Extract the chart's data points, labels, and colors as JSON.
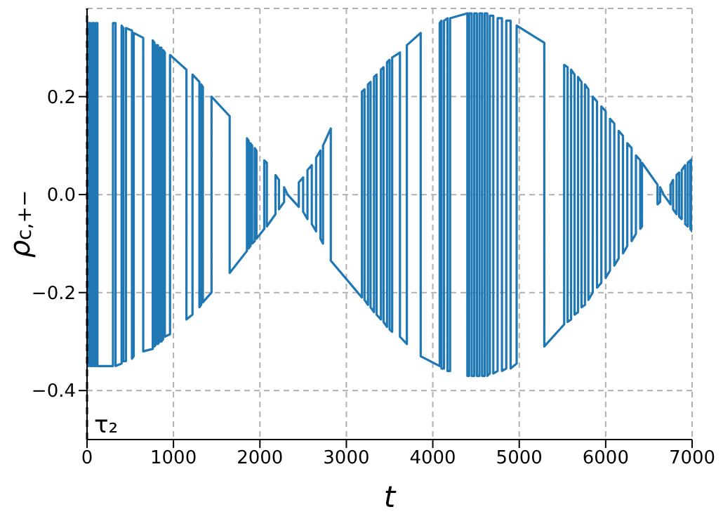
{
  "chart_data": {
    "type": "line",
    "xlabel": "t",
    "ylabel": "ρ$_{c,+−}$",
    "xlim": [
      0,
      7000
    ],
    "ylim": [
      -0.5,
      0.38
    ],
    "xticks": [
      0,
      1000,
      2000,
      3000,
      4000,
      5000,
      6000,
      7000
    ],
    "yticks": [
      {
        "value": -0.4,
        "label": "−0.4"
      },
      {
        "value": -0.2,
        "label": "−0.2"
      },
      {
        "value": 0,
        "label": "0.0"
      },
      {
        "value": 0.2,
        "label": "0.2"
      }
    ],
    "grid": true,
    "ref_lines": [
      {
        "axis": "x",
        "value": 0,
        "label": "τ₂",
        "color": "#000000",
        "line_style": "dashed"
      }
    ],
    "series": [
      {
        "color": "#1f77b4",
        "x": [
          0,
          0,
          20,
          20,
          40,
          40,
          60,
          60,
          80,
          80,
          100,
          100,
          120,
          120,
          300,
          300,
          330,
          330,
          400,
          400,
          420,
          420,
          450,
          450,
          520,
          520,
          540,
          540,
          650,
          650,
          760,
          760,
          780,
          780,
          800,
          800,
          820,
          820,
          840,
          840,
          860,
          860,
          880,
          880,
          900,
          900,
          960,
          960,
          1150,
          1150,
          1220,
          1220,
          1300,
          1300,
          1320,
          1320,
          1340,
          1340,
          1440,
          1440,
          1650,
          1650,
          1850,
          1850,
          1870,
          1870,
          1890,
          1890,
          1910,
          1910,
          1940,
          1940,
          1960,
          1960,
          2050,
          2050,
          2080,
          2080,
          2180,
          2180,
          2220,
          2220,
          2280,
          2280,
          2320,
          2450,
          2450,
          2500,
          2500,
          2550,
          2550,
          2600,
          2600,
          2650,
          2650,
          2700,
          2700,
          2730,
          2730,
          2820,
          2820,
          3180,
          3180,
          3210,
          3210,
          3250,
          3250,
          3280,
          3280,
          3320,
          3320,
          3350,
          3350,
          3400,
          3400,
          3430,
          3430,
          3470,
          3470,
          3500,
          3500,
          3530,
          3530,
          3620,
          3620,
          3700,
          3700,
          3860,
          3860,
          4080,
          4080,
          4100,
          4100,
          4130,
          4130,
          4170,
          4170,
          4200,
          4200,
          4400,
          4400,
          4420,
          4420,
          4450,
          4450,
          4480,
          4480,
          4510,
          4510,
          4540,
          4540,
          4570,
          4570,
          4600,
          4600,
          4630,
          4630,
          4660,
          4660,
          4700,
          4700,
          4750,
          4750,
          4800,
          4800,
          4850,
          4850,
          4900,
          4900,
          4970,
          4970,
          5290,
          5290,
          5520,
          5520,
          5560,
          5560,
          5600,
          5600,
          5640,
          5640,
          5680,
          5680,
          5720,
          5720,
          5760,
          5760,
          5800,
          5800,
          5850,
          5850,
          5900,
          5900,
          5950,
          5950,
          6000,
          6000,
          6050,
          6050,
          6100,
          6100,
          6150,
          6150,
          6200,
          6200,
          6250,
          6250,
          6300,
          6300,
          6350,
          6350,
          6400,
          6400,
          6420,
          6420,
          6600,
          6600,
          6630,
          6630,
          6670,
          6750,
          6750,
          6780,
          6780,
          6820,
          6820,
          6850,
          6850,
          6880,
          6880,
          6920,
          6920,
          6950,
          6950,
          6980,
          6980,
          7000,
          7000
        ],
        "values": [
          0.35,
          -0.35,
          -0.35,
          0.35,
          0.35,
          -0.35,
          -0.35,
          0.35,
          0.35,
          -0.35,
          -0.35,
          0.35,
          0.35,
          -0.35,
          -0.35,
          0.35,
          0.35,
          -0.35,
          -0.345,
          0.345,
          0.34,
          -0.34,
          -0.34,
          0.34,
          0.335,
          -0.335,
          -0.33,
          0.33,
          0.32,
          -0.32,
          -0.315,
          0.315,
          0.31,
          -0.31,
          -0.305,
          0.305,
          0.305,
          -0.305,
          -0.3,
          0.3,
          0.3,
          -0.3,
          -0.295,
          0.295,
          0.29,
          -0.29,
          -0.285,
          0.285,
          0.255,
          -0.255,
          -0.245,
          0.245,
          0.23,
          -0.23,
          -0.225,
          0.225,
          0.22,
          -0.22,
          -0.2,
          0.2,
          0.16,
          -0.16,
          -0.115,
          0.115,
          0.11,
          -0.11,
          -0.105,
          0.105,
          0.1,
          -0.1,
          -0.095,
          0.095,
          0.09,
          -0.09,
          -0.07,
          0.07,
          0.065,
          -0.065,
          -0.04,
          0.04,
          0.03,
          -0.03,
          -0.015,
          0.015,
          0,
          -0.025,
          0.025,
          0.035,
          -0.035,
          -0.05,
          0.05,
          0.06,
          -0.06,
          -0.075,
          0.075,
          0.09,
          -0.09,
          -0.1,
          0.1,
          0.135,
          -0.135,
          -0.21,
          0.21,
          0.215,
          -0.215,
          -0.225,
          0.225,
          0.23,
          -0.23,
          -0.24,
          0.24,
          0.245,
          -0.245,
          -0.255,
          0.255,
          0.26,
          -0.26,
          -0.27,
          0.27,
          0.275,
          -0.275,
          -0.28,
          0.28,
          0.29,
          -0.29,
          -0.305,
          0.305,
          0.33,
          -0.33,
          -0.35,
          0.35,
          0.355,
          -0.355,
          -0.355,
          0.355,
          0.36,
          -0.36,
          -0.36,
          0.36,
          0.37,
          -0.37,
          -0.37,
          0.37,
          0.37,
          -0.37,
          -0.37,
          0.37,
          0.37,
          -0.37,
          -0.37,
          0.37,
          0.37,
          -0.37,
          -0.37,
          0.37,
          0.37,
          -0.37,
          -0.365,
          0.365,
          0.365,
          -0.365,
          -0.36,
          0.36,
          0.36,
          -0.36,
          -0.355,
          0.355,
          0.355,
          -0.355,
          -0.345,
          0.345,
          0.31,
          -0.31,
          -0.265,
          0.265,
          0.26,
          -0.26,
          -0.255,
          0.255,
          0.245,
          -0.245,
          -0.24,
          0.24,
          0.23,
          -0.23,
          -0.225,
          0.225,
          0.215,
          -0.215,
          -0.2,
          0.2,
          0.19,
          -0.19,
          -0.18,
          0.18,
          0.17,
          -0.17,
          -0.155,
          0.155,
          0.145,
          -0.145,
          -0.13,
          0.13,
          0.12,
          -0.12,
          -0.105,
          0.105,
          0.095,
          -0.095,
          -0.08,
          0.08,
          0.07,
          -0.07,
          -0.065,
          0.065,
          0.02,
          -0.02,
          -0.015,
          0.015,
          0,
          -0.02,
          0.02,
          0.03,
          -0.03,
          -0.04,
          0.04,
          0.045,
          -0.045,
          -0.05,
          0.05,
          0.06,
          -0.06,
          -0.065,
          0.065,
          0.07,
          -0.07,
          -0.075,
          0.075
        ]
      }
    ]
  }
}
